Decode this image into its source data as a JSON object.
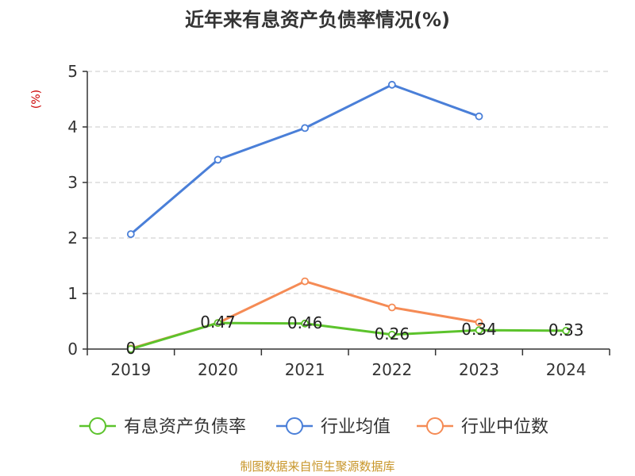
{
  "chart_data": {
    "type": "line",
    "title": "近年来有息资产负债率情况(%)",
    "ylabel": "(%)",
    "ylim": [
      0,
      5
    ],
    "yticks": [
      0,
      1,
      2,
      3,
      4,
      5
    ],
    "grid": true,
    "legend_position": "bottom",
    "categories": [
      "2019",
      "2020",
      "2021",
      "2022",
      "2023",
      "2024"
    ],
    "series": [
      {
        "name": "有息资产负债率",
        "color": "#5cc32c",
        "values": [
          0,
          0.47,
          0.46,
          0.26,
          0.34,
          0.33
        ],
        "labels": [
          "0",
          "0.47",
          "0.46",
          "0.26",
          "0.34",
          "0.33"
        ]
      },
      {
        "name": "行业均值",
        "color": "#4a7fd8",
        "values": [
          2.07,
          3.41,
          3.98,
          4.76,
          4.19,
          null
        ]
      },
      {
        "name": "行业中位数",
        "color": "#f58b55",
        "values": [
          0.01,
          0.47,
          1.22,
          0.75,
          0.48,
          null
        ]
      }
    ]
  },
  "ylabel_color": "#cc0000",
  "source": {
    "text": "制图数据来自恒生聚源数据库",
    "color": "#c8962a"
  }
}
